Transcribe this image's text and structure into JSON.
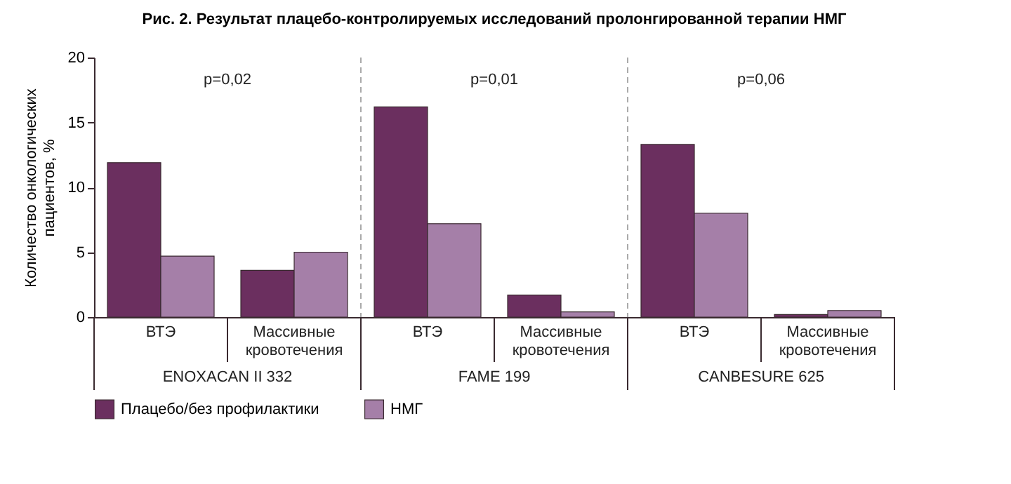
{
  "chart_data": {
    "type": "bar",
    "title": "Рис. 2. Результат плацебо-контролируемых исследований пролонгированной терапии НМГ",
    "ylabel": "Количество онкологических пациентов, %",
    "categories": [
      "ВТЭ",
      "Массивные кровотечения",
      "ВТЭ",
      "Массивные кровотечения",
      "ВТЭ",
      "Массивные кровотечения"
    ],
    "series": [
      {
        "name": "Плацебо/без профилактики",
        "color": "#6b2f5f",
        "values": [
          11.9,
          3.6,
          16.2,
          1.7,
          13.3,
          0.2
        ]
      },
      {
        "name": "НМГ",
        "color": "#a57fa8",
        "values": [
          4.7,
          5.0,
          7.2,
          0.4,
          8.0,
          0.5
        ]
      }
    ],
    "ylim": [
      0,
      20
    ],
    "yticks": [
      0,
      5,
      10,
      15,
      20
    ],
    "grid": false,
    "legend": "bottom",
    "annotations": [
      "p=0,02",
      "p=0,01",
      "p=0,06",
      "ENOXACAN II 332",
      "FAME 199",
      "CANBESURE 625"
    ]
  }
}
